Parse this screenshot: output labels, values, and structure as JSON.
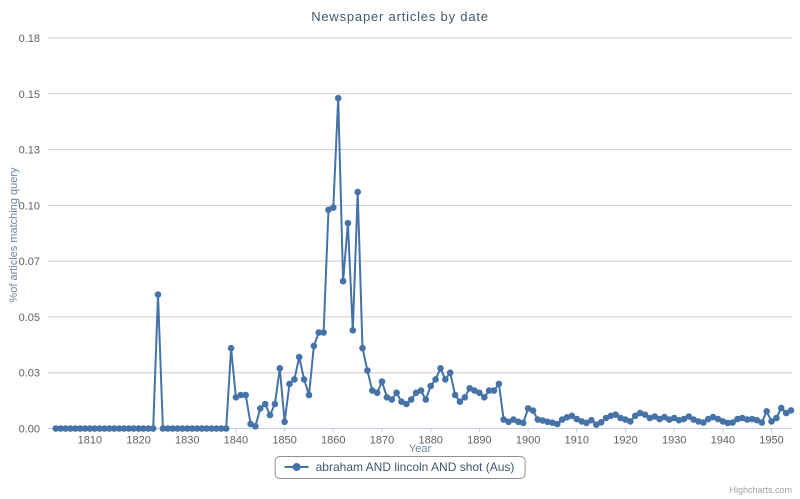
{
  "credits": {
    "label": "Highcharts.com"
  },
  "legend": {
    "label": "abraham AND lincoln AND shot (Aus)"
  },
  "colors": {
    "series": "#4572A7",
    "title": "#3E576F",
    "axis_title": "#6D869F",
    "tick_label": "#606060",
    "gridline": "#CCCCCC",
    "axis_line": "#C0D0E0",
    "legend_border": "#909090",
    "legend_text": "#3E576F",
    "credits": "#A0A0A0",
    "background": "#FFFFFF"
  },
  "chart_data": {
    "type": "line",
    "title": "Newspaper articles by date",
    "xlabel": "Year",
    "ylabel": "%of articles matching query",
    "legend_position": "bottom",
    "grid": "horizontal",
    "xlim": [
      1801.4,
      1954.2
    ],
    "ylim": [
      0,
      0.175
    ],
    "x_ticks": [
      1810,
      1820,
      1830,
      1840,
      1850,
      1860,
      1870,
      1880,
      1890,
      1900,
      1910,
      1920,
      1930,
      1940,
      1950
    ],
    "y_ticks": [
      {
        "v": 0,
        "label": "0.00"
      },
      {
        "v": 0.025,
        "label": "0.03"
      },
      {
        "v": 0.05,
        "label": "0.05"
      },
      {
        "v": 0.075,
        "label": "0.07"
      },
      {
        "v": 0.1,
        "label": "0.10"
      },
      {
        "v": 0.125,
        "label": "0.13"
      },
      {
        "v": 0.15,
        "label": "0.15"
      },
      {
        "v": 0.175,
        "label": "0.18"
      }
    ],
    "series": [
      {
        "name": "abraham AND lincoln AND shot (Aus)",
        "color": "#4572A7",
        "marker": "circle",
        "x_start": 1803,
        "x_step": 1,
        "values": [
          0,
          0,
          0,
          0,
          0,
          0,
          0,
          0,
          0,
          0,
          0,
          0,
          0,
          0,
          0,
          0,
          0,
          0,
          0,
          0,
          0,
          0.06,
          0,
          0,
          0,
          0,
          0,
          0,
          0,
          0,
          0,
          0,
          0,
          0,
          0,
          0,
          0.036,
          0.014,
          0.015,
          0.015,
          0.002,
          0.001,
          0.009,
          0.011,
          0.006,
          0.011,
          0.027,
          0.003,
          0.02,
          0.022,
          0.032,
          0.022,
          0.015,
          0.037,
          0.043,
          0.043,
          0.098,
          0.099,
          0.148,
          0.066,
          0.092,
          0.044,
          0.106,
          0.036,
          0.026,
          0.017,
          0.016,
          0.021,
          0.014,
          0.013,
          0.016,
          0.012,
          0.011,
          0.013,
          0.016,
          0.017,
          0.013,
          0.019,
          0.022,
          0.027,
          0.022,
          0.025,
          0.015,
          0.012,
          0.014,
          0.018,
          0.017,
          0.016,
          0.014,
          0.017,
          0.017,
          0.02,
          0.004,
          0.003,
          0.004,
          0.003,
          0.0025,
          0.009,
          0.008,
          0.004,
          0.0036,
          0.003,
          0.0026,
          0.002,
          0.004,
          0.005,
          0.0057,
          0.0042,
          0.0032,
          0.0025,
          0.0037,
          0.0017,
          0.0028,
          0.0047,
          0.0057,
          0.0062,
          0.0047,
          0.004,
          0.0032,
          0.0057,
          0.0069,
          0.0062,
          0.0047,
          0.0054,
          0.0042,
          0.0051,
          0.004,
          0.0047,
          0.0037,
          0.0042,
          0.0054,
          0.004,
          0.0032,
          0.0027,
          0.0042,
          0.0051,
          0.0042,
          0.0032,
          0.0025,
          0.0027,
          0.0042,
          0.0047,
          0.004,
          0.0042,
          0.0037,
          0.0027,
          0.0077,
          0.0032,
          0.0047,
          0.0092,
          0.0069,
          0.0081
        ]
      }
    ]
  }
}
